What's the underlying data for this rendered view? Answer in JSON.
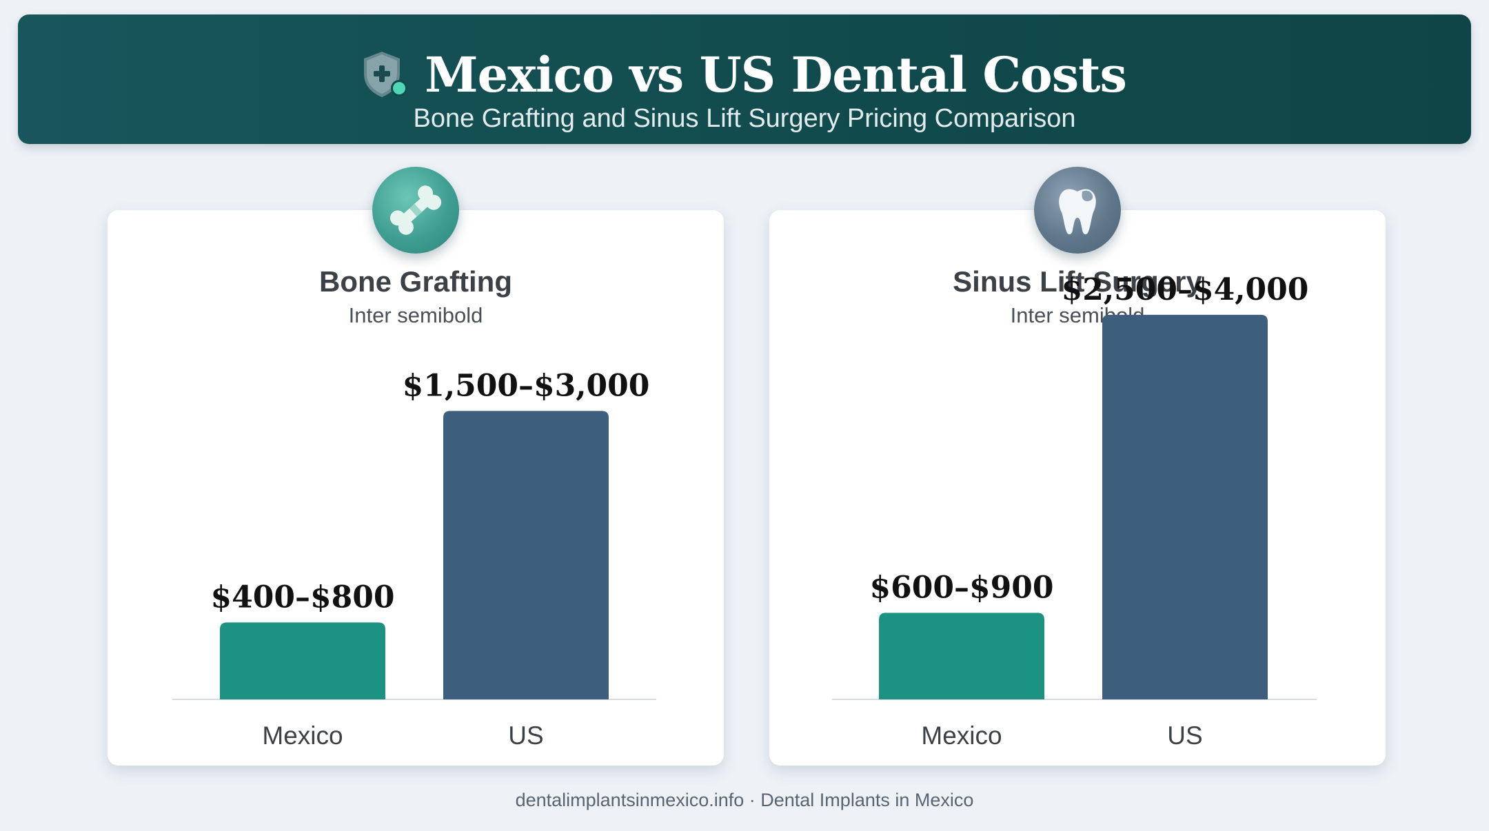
{
  "header": {
    "title": "Mexico vs US Dental Costs",
    "subtitle": "Bone Grafting and Sinus Lift Surgery Pricing Comparison"
  },
  "colors": {
    "header_bg": "#114a4c",
    "mexico_bar": "#1c9282",
    "us_bar": "#3d5e7c",
    "page_bg": "#eef2f7"
  },
  "chart_data": [
    {
      "type": "bar",
      "title": "Bone Grafting",
      "subtitle": "Inter semibold",
      "icon": "bone-icon",
      "categories": [
        "Mexico",
        "US"
      ],
      "value_labels": [
        "$400–$800",
        "$1,500–$3,000"
      ],
      "ranges": [
        [
          400,
          800
        ],
        [
          1500,
          3000
        ]
      ],
      "values": [
        800,
        3000
      ],
      "ylim": [
        0,
        4300
      ]
    },
    {
      "type": "bar",
      "title": "Sinus Lift Surgery",
      "subtitle": "Inter semibold",
      "icon": "tooth-icon",
      "categories": [
        "Mexico",
        "US"
      ],
      "value_labels": [
        "$600–$900",
        "$2,500–$4,000"
      ],
      "ranges": [
        [
          600,
          900
        ],
        [
          2500,
          4000
        ]
      ],
      "values": [
        900,
        4000
      ],
      "ylim": [
        0,
        4300
      ]
    }
  ],
  "footer": "dentalimplantsinmexico.info · Dental Implants in Mexico"
}
